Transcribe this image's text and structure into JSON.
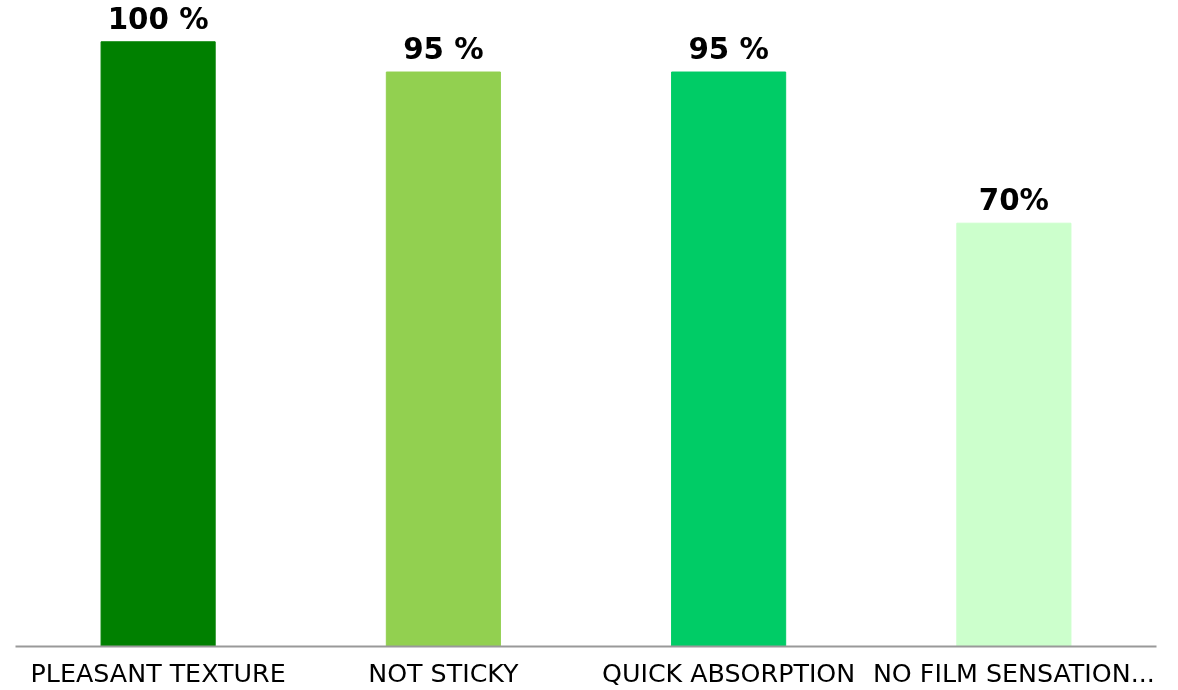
{
  "chart_data": {
    "type": "bar",
    "categories": [
      "PLEASANT TEXTURE",
      "NOT STICKY",
      "QUICK ABSORPTION",
      "NO FILM SENSATION..."
    ],
    "values": [
      100,
      95,
      95,
      70
    ],
    "colors": [
      "#008000",
      "#92d050",
      "#00cc66",
      "#ccffcc"
    ],
    "value_labels": [
      "100 %",
      "95 %",
      "95 %",
      "70%"
    ]
  }
}
